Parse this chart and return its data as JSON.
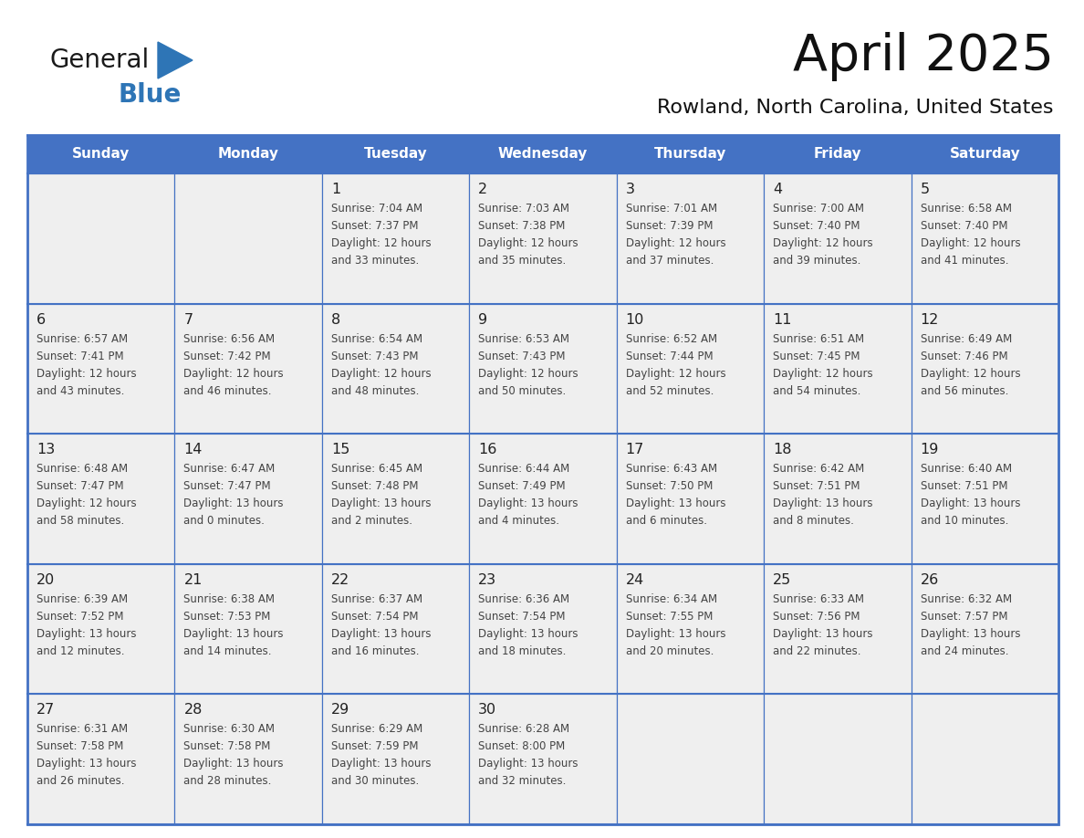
{
  "title": "April 2025",
  "subtitle": "Rowland, North Carolina, United States",
  "days_of_week": [
    "Sunday",
    "Monday",
    "Tuesday",
    "Wednesday",
    "Thursday",
    "Friday",
    "Saturday"
  ],
  "header_bg": "#4472C4",
  "header_text_color": "#FFFFFF",
  "cell_bg": "#EFEFEF",
  "cell_empty_bg": "#EFEFEF",
  "border_color": "#4472C4",
  "border_color_light": "#AAAACC",
  "text_color": "#444444",
  "day_num_color": "#222222",
  "title_color": "#111111",
  "subtitle_color": "#111111",
  "logo_general_color": "#1A1A1A",
  "logo_blue_color": "#2E75B6",
  "logo_triangle_color": "#2E75B6",
  "weeks": [
    [
      {
        "day": "",
        "info": ""
      },
      {
        "day": "",
        "info": ""
      },
      {
        "day": "1",
        "info": "Sunrise: 7:04 AM\nSunset: 7:37 PM\nDaylight: 12 hours\nand 33 minutes."
      },
      {
        "day": "2",
        "info": "Sunrise: 7:03 AM\nSunset: 7:38 PM\nDaylight: 12 hours\nand 35 minutes."
      },
      {
        "day": "3",
        "info": "Sunrise: 7:01 AM\nSunset: 7:39 PM\nDaylight: 12 hours\nand 37 minutes."
      },
      {
        "day": "4",
        "info": "Sunrise: 7:00 AM\nSunset: 7:40 PM\nDaylight: 12 hours\nand 39 minutes."
      },
      {
        "day": "5",
        "info": "Sunrise: 6:58 AM\nSunset: 7:40 PM\nDaylight: 12 hours\nand 41 minutes."
      }
    ],
    [
      {
        "day": "6",
        "info": "Sunrise: 6:57 AM\nSunset: 7:41 PM\nDaylight: 12 hours\nand 43 minutes."
      },
      {
        "day": "7",
        "info": "Sunrise: 6:56 AM\nSunset: 7:42 PM\nDaylight: 12 hours\nand 46 minutes."
      },
      {
        "day": "8",
        "info": "Sunrise: 6:54 AM\nSunset: 7:43 PM\nDaylight: 12 hours\nand 48 minutes."
      },
      {
        "day": "9",
        "info": "Sunrise: 6:53 AM\nSunset: 7:43 PM\nDaylight: 12 hours\nand 50 minutes."
      },
      {
        "day": "10",
        "info": "Sunrise: 6:52 AM\nSunset: 7:44 PM\nDaylight: 12 hours\nand 52 minutes."
      },
      {
        "day": "11",
        "info": "Sunrise: 6:51 AM\nSunset: 7:45 PM\nDaylight: 12 hours\nand 54 minutes."
      },
      {
        "day": "12",
        "info": "Sunrise: 6:49 AM\nSunset: 7:46 PM\nDaylight: 12 hours\nand 56 minutes."
      }
    ],
    [
      {
        "day": "13",
        "info": "Sunrise: 6:48 AM\nSunset: 7:47 PM\nDaylight: 12 hours\nand 58 minutes."
      },
      {
        "day": "14",
        "info": "Sunrise: 6:47 AM\nSunset: 7:47 PM\nDaylight: 13 hours\nand 0 minutes."
      },
      {
        "day": "15",
        "info": "Sunrise: 6:45 AM\nSunset: 7:48 PM\nDaylight: 13 hours\nand 2 minutes."
      },
      {
        "day": "16",
        "info": "Sunrise: 6:44 AM\nSunset: 7:49 PM\nDaylight: 13 hours\nand 4 minutes."
      },
      {
        "day": "17",
        "info": "Sunrise: 6:43 AM\nSunset: 7:50 PM\nDaylight: 13 hours\nand 6 minutes."
      },
      {
        "day": "18",
        "info": "Sunrise: 6:42 AM\nSunset: 7:51 PM\nDaylight: 13 hours\nand 8 minutes."
      },
      {
        "day": "19",
        "info": "Sunrise: 6:40 AM\nSunset: 7:51 PM\nDaylight: 13 hours\nand 10 minutes."
      }
    ],
    [
      {
        "day": "20",
        "info": "Sunrise: 6:39 AM\nSunset: 7:52 PM\nDaylight: 13 hours\nand 12 minutes."
      },
      {
        "day": "21",
        "info": "Sunrise: 6:38 AM\nSunset: 7:53 PM\nDaylight: 13 hours\nand 14 minutes."
      },
      {
        "day": "22",
        "info": "Sunrise: 6:37 AM\nSunset: 7:54 PM\nDaylight: 13 hours\nand 16 minutes."
      },
      {
        "day": "23",
        "info": "Sunrise: 6:36 AM\nSunset: 7:54 PM\nDaylight: 13 hours\nand 18 minutes."
      },
      {
        "day": "24",
        "info": "Sunrise: 6:34 AM\nSunset: 7:55 PM\nDaylight: 13 hours\nand 20 minutes."
      },
      {
        "day": "25",
        "info": "Sunrise: 6:33 AM\nSunset: 7:56 PM\nDaylight: 13 hours\nand 22 minutes."
      },
      {
        "day": "26",
        "info": "Sunrise: 6:32 AM\nSunset: 7:57 PM\nDaylight: 13 hours\nand 24 minutes."
      }
    ],
    [
      {
        "day": "27",
        "info": "Sunrise: 6:31 AM\nSunset: 7:58 PM\nDaylight: 13 hours\nand 26 minutes."
      },
      {
        "day": "28",
        "info": "Sunrise: 6:30 AM\nSunset: 7:58 PM\nDaylight: 13 hours\nand 28 minutes."
      },
      {
        "day": "29",
        "info": "Sunrise: 6:29 AM\nSunset: 7:59 PM\nDaylight: 13 hours\nand 30 minutes."
      },
      {
        "day": "30",
        "info": "Sunrise: 6:28 AM\nSunset: 8:00 PM\nDaylight: 13 hours\nand 32 minutes."
      },
      {
        "day": "",
        "info": ""
      },
      {
        "day": "",
        "info": ""
      },
      {
        "day": "",
        "info": ""
      }
    ]
  ]
}
